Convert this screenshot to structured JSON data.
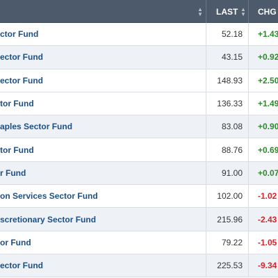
{
  "header": {
    "name_label": "",
    "last_label": "LAST",
    "chg_label": "CHG",
    "sort_icon_name": "sort-arrows-icon"
  },
  "colors": {
    "header_bg": "#4d5a6c",
    "name_text": "#1d4f82",
    "positive": "#2a8a2a",
    "negative": "#d4262a",
    "row_alt_bg": "#eef2f7"
  },
  "rows": [
    {
      "name": "ctor Fund",
      "last": "52.18",
      "chg": "+1.43",
      "dir": "pos",
      "bg": "white"
    },
    {
      "name": "ector Fund",
      "last": "43.15",
      "chg": "+0.92",
      "dir": "pos",
      "bg": "alt"
    },
    {
      "name": "ector Fund",
      "last": "148.93",
      "chg": "+2.50",
      "dir": "pos",
      "bg": "white"
    },
    {
      "name": "tor Fund",
      "last": "136.33",
      "chg": "+1.49",
      "dir": "pos",
      "bg": "white"
    },
    {
      "name": "aples Sector Fund",
      "last": "83.08",
      "chg": "+0.90",
      "dir": "pos",
      "bg": "alt"
    },
    {
      "name": "tor Fund",
      "last": "88.76",
      "chg": "+0.69",
      "dir": "pos",
      "bg": "white"
    },
    {
      "name": "r Fund",
      "last": "91.00",
      "chg": "+0.07",
      "dir": "pos",
      "bg": "alt"
    },
    {
      "name": "on Services Sector Fund",
      "last": "102.00",
      "chg": "-1.02",
      "dir": "neg",
      "bg": "white"
    },
    {
      "name": "scretionary Sector Fund",
      "last": "215.96",
      "chg": "-2.43",
      "dir": "neg",
      "bg": "alt"
    },
    {
      "name": "or Fund",
      "last": "79.22",
      "chg": "-1.05",
      "dir": "neg",
      "bg": "white"
    },
    {
      "name": "ector Fund",
      "last": "225.53",
      "chg": "-9.34",
      "dir": "neg",
      "bg": "alt"
    }
  ]
}
